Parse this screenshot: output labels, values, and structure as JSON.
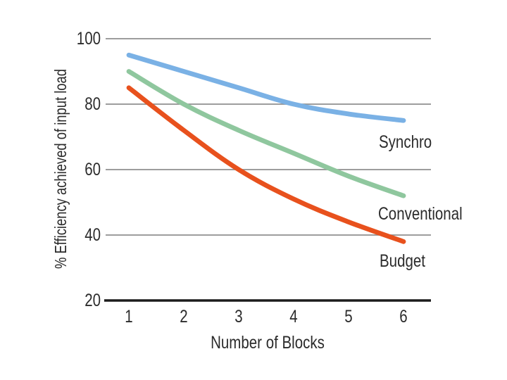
{
  "chart_data": {
    "type": "line",
    "title": "",
    "xlabel": "Number of Blocks",
    "ylabel": "% Efficiency achieved of input load",
    "x": [
      1,
      2,
      3,
      4,
      5,
      6
    ],
    "series": [
      {
        "name": "Synchro",
        "color": "#7ab1e5",
        "values": [
          95,
          90,
          85,
          80,
          77,
          75
        ]
      },
      {
        "name": "Conventional",
        "color": "#8fc79e",
        "values": [
          90,
          80,
          72,
          65,
          58,
          52
        ]
      },
      {
        "name": "Budget",
        "color": "#e8511d",
        "values": [
          85,
          72,
          60,
          51,
          44,
          38
        ]
      }
    ],
    "xlim": [
      1,
      6
    ],
    "ylim": [
      20,
      100
    ],
    "x_ticks": [
      "1",
      "2",
      "3",
      "4",
      "5",
      "6"
    ],
    "y_ticks": [
      20,
      40,
      60,
      80,
      100
    ],
    "grid": "horizontal",
    "legend_position": "inline labels right of plot, below each line end",
    "background": "#ffffff",
    "colors": {
      "gridline": "#8f8f8f",
      "axis_line": "#1c1c1c",
      "text": "#2b2b2b"
    }
  }
}
